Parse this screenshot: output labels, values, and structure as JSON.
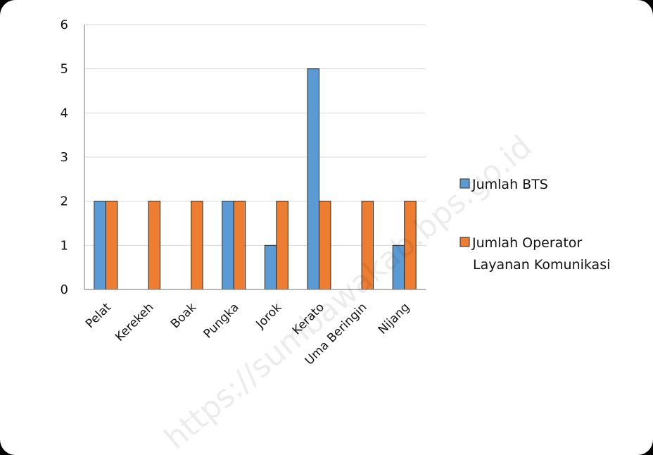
{
  "chart_data": {
    "type": "bar",
    "categories": [
      "Pelat",
      "Kerekeh",
      "Boak",
      "Pungka",
      "Jorok",
      "Kerato",
      "Uma Beringin",
      "Nijang"
    ],
    "series": [
      {
        "name": "Jumlah BTS",
        "values": [
          2,
          0,
          0,
          2,
          1,
          5,
          0,
          1
        ],
        "color": "#5B9BD5"
      },
      {
        "name": "Jumlah Operator Layanan Komunikasi",
        "values": [
          2,
          2,
          2,
          2,
          2,
          2,
          2,
          2
        ],
        "color": "#ED7D31"
      }
    ],
    "ylim": [
      0,
      6
    ],
    "yticks": [
      "0",
      "1",
      "2",
      "3",
      "4",
      "5",
      "6"
    ],
    "grid": true,
    "legend_position": "right",
    "legend_lines": [
      [
        "Jumlah BTS"
      ],
      [
        "Jumlah Operator",
        "Layanan Komunikasi"
      ]
    ],
    "watermark": "https://sumbawakab.bps.go.id"
  }
}
